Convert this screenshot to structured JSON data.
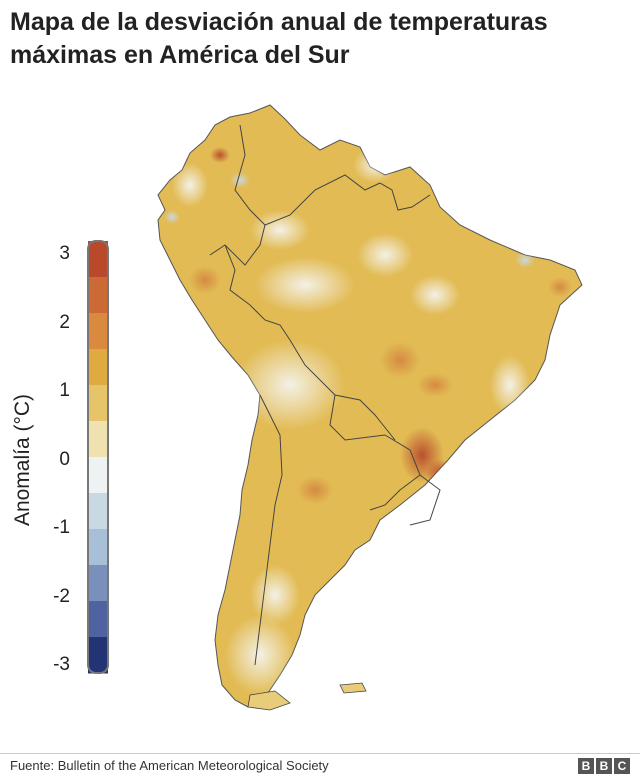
{
  "title": "Mapa de la desviación anual de temperaturas máximas en América del Sur",
  "legend": {
    "title": "Anomalía (°C)",
    "ticks": [
      "3",
      "2",
      "1",
      "0",
      "-1",
      "-2",
      "-3"
    ],
    "min": -3,
    "max": 3,
    "steps": [
      {
        "value": 2.75,
        "color": "#b84a2b"
      },
      {
        "value": 2.25,
        "color": "#cc6a35"
      },
      {
        "value": 1.75,
        "color": "#d98a3e"
      },
      {
        "value": 1.25,
        "color": "#dfaa3f"
      },
      {
        "value": 0.75,
        "color": "#e6c56a"
      },
      {
        "value": 0.25,
        "color": "#f0e2b0"
      },
      {
        "value": -0.25,
        "color": "#eef2f2"
      },
      {
        "value": -0.75,
        "color": "#c8d9e3"
      },
      {
        "value": -1.25,
        "color": "#a8bfd8"
      },
      {
        "value": -1.75,
        "color": "#7990bd"
      },
      {
        "value": -2.25,
        "color": "#4e63a0"
      },
      {
        "value": -2.75,
        "color": "#223474"
      }
    ]
  },
  "map": {
    "land_color": "#e2bb54",
    "hot_color": "#b84a2b",
    "cool_color": "#eef2f2",
    "border_color": "#444444"
  },
  "footer": {
    "source": "Fuente: Bulletin of the American Meteorological Society",
    "logo_letters": [
      "B",
      "B",
      "C"
    ]
  }
}
